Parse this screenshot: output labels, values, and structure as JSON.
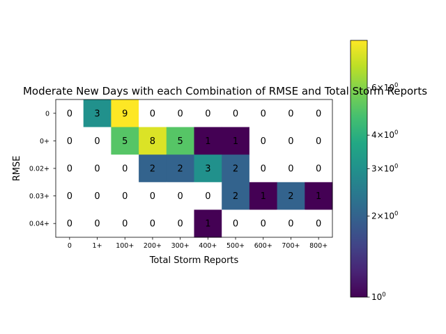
{
  "chart_data": {
    "type": "heatmap",
    "title": "Moderate New Days with each Combination of RMSE and Total Storm Reports",
    "xlabel": "Total Storm Reports",
    "ylabel": "RMSE",
    "x_categories": [
      "0",
      "1+",
      "100+",
      "200+",
      "300+",
      "400+",
      "500+",
      "600+",
      "700+",
      "800+"
    ],
    "y_categories": [
      "0",
      "0+",
      "0.02+",
      "0.03+",
      "0.04+"
    ],
    "values": [
      [
        0,
        3,
        9,
        0,
        0,
        0,
        0,
        0,
        0,
        0
      ],
      [
        0,
        0,
        5,
        8,
        5,
        1,
        1,
        0,
        0,
        0
      ],
      [
        0,
        0,
        0,
        2,
        2,
        3,
        2,
        0,
        0,
        0
      ],
      [
        0,
        0,
        0,
        0,
        0,
        0,
        2,
        1,
        2,
        1
      ],
      [
        0,
        0,
        0,
        0,
        0,
        1,
        0,
        0,
        0,
        0
      ]
    ],
    "color_scale": "log",
    "colormap": "viridis",
    "colorbar_range": [
      1,
      9
    ],
    "colorbar_ticks": [
      {
        "value": 1,
        "label": "10^0"
      },
      {
        "value": 2,
        "label": "2×10^0"
      },
      {
        "value": 3,
        "label": "3×10^0"
      },
      {
        "value": 4,
        "label": "4×10^0"
      },
      {
        "value": 6,
        "label": "6×10^0"
      }
    ],
    "zero_cell_color": "#ffffff"
  }
}
